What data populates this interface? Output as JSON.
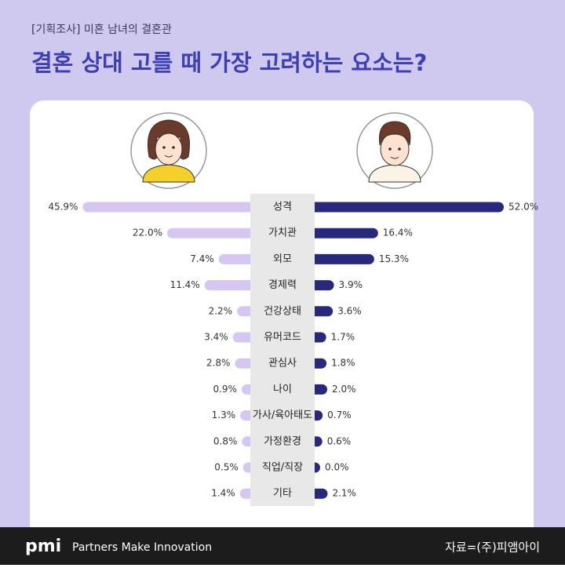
{
  "chart_data": {
    "type": "butterfly",
    "subtitle": "[기획조사] 미혼 남녀의 결혼관",
    "title": "결혼 상대 고를 때 가장 고려하는 요소는?",
    "categories": [
      "성격",
      "가치관",
      "외모",
      "경제력",
      "건강상태",
      "유머코드",
      "관심사",
      "나이",
      "가사/육아태도",
      "가정환경",
      "직업/직장",
      "기타"
    ],
    "series": [
      {
        "color": "#d5c6f2",
        "side": "left",
        "values": [
          45.9,
          22.0,
          7.4,
          11.4,
          2.2,
          3.4,
          2.8,
          0.9,
          1.3,
          0.8,
          0.5,
          1.4
        ],
        "value_labels": [
          "45.9%",
          "22.0%",
          "7.4%",
          "11.4%",
          "2.2%",
          "3.4%",
          "2.8%",
          "0.9%",
          "1.3%",
          "0.8%",
          "0.5%",
          "1.4%"
        ]
      },
      {
        "color": "#272a7c",
        "side": "right",
        "values": [
          52.0,
          16.4,
          15.3,
          3.9,
          3.6,
          1.7,
          1.8,
          2.0,
          0.7,
          0.6,
          0.0,
          2.1
        ],
        "value_labels": [
          "52.0%",
          "16.4%",
          "15.3%",
          "3.9%",
          "3.6%",
          "1.7%",
          "1.8%",
          "2.0%",
          "0.7%",
          "0.6%",
          "0.0%",
          "2.1%"
        ]
      }
    ]
  },
  "footer": {
    "brand": "pmi",
    "slogan": "Partners Make Innovation",
    "source": "자료=(주)피앰아이"
  }
}
